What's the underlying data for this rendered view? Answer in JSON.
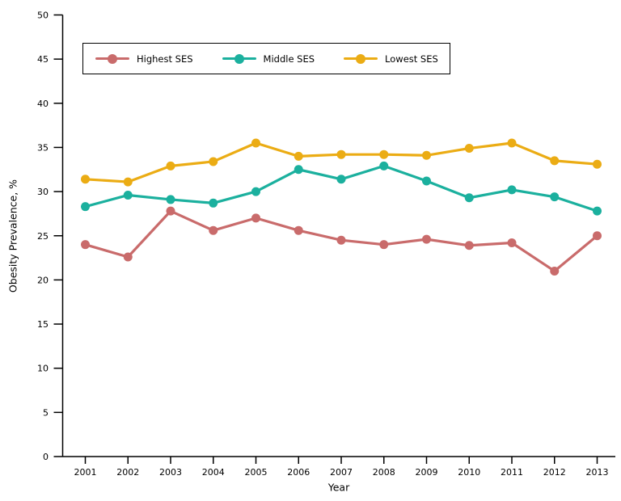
{
  "chart_data": {
    "type": "line",
    "title": "",
    "xlabel": "Year",
    "ylabel": "Obesity Prevalence, %",
    "x": [
      2001,
      2002,
      2003,
      2004,
      2005,
      2006,
      2007,
      2008,
      2009,
      2010,
      2011,
      2012,
      2013
    ],
    "ylim": [
      0,
      50
    ],
    "ytick_step": 5,
    "grid": false,
    "legend_position": "top-inside-bordered",
    "axis_color": "#000000",
    "series": [
      {
        "name": "Highest SES",
        "color": "#C96B6B",
        "values": [
          24.0,
          22.6,
          27.8,
          25.6,
          27.0,
          25.6,
          24.5,
          24.0,
          24.6,
          23.9,
          24.2,
          21.0,
          25.0
        ]
      },
      {
        "name": "Middle SES",
        "color": "#1BB09E",
        "values": [
          28.3,
          29.6,
          29.1,
          28.7,
          30.0,
          32.5,
          31.4,
          32.9,
          31.2,
          29.3,
          30.2,
          29.4,
          27.8
        ]
      },
      {
        "name": "Lowest SES",
        "color": "#EBAC14",
        "values": [
          31.4,
          31.1,
          32.9,
          33.4,
          35.5,
          34.0,
          34.2,
          34.2,
          34.1,
          34.9,
          35.5,
          33.5,
          33.1
        ]
      }
    ]
  }
}
